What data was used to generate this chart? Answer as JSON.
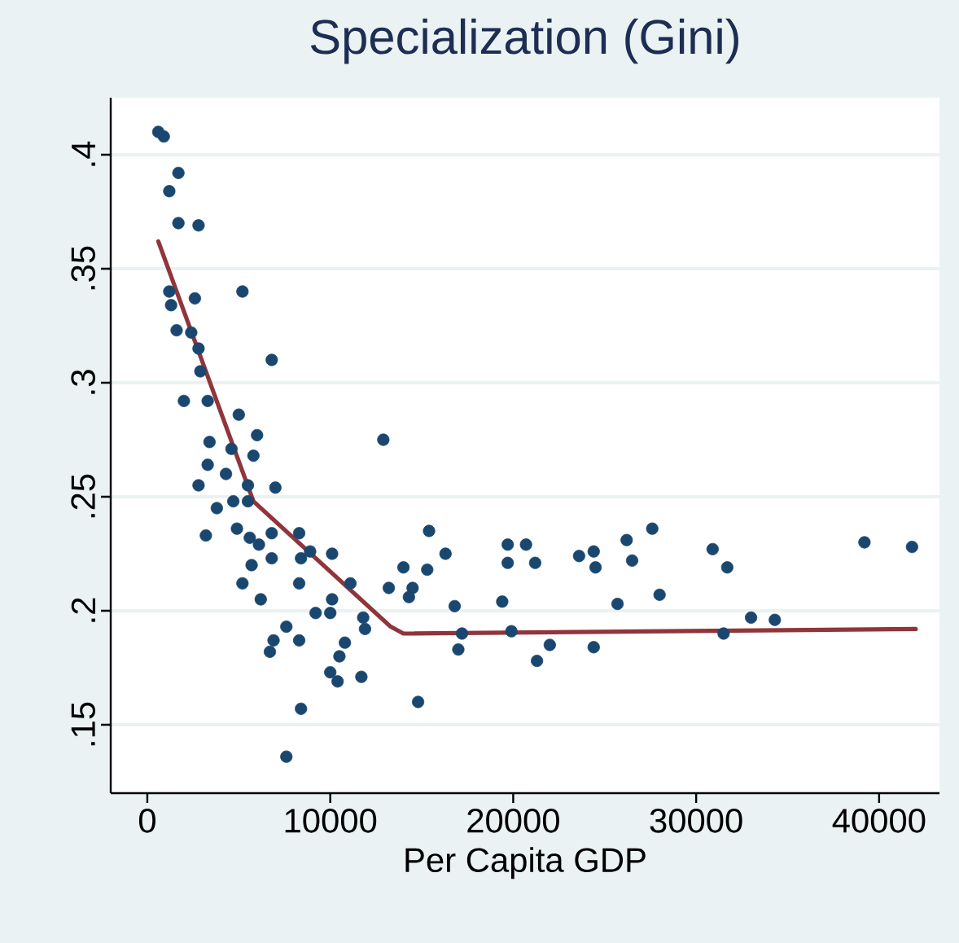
{
  "chart_data": {
    "type": "scatter",
    "title": "Specialization (Gini)",
    "xlabel": "Per Capita GDP",
    "xlim": [
      -2000,
      43300
    ],
    "ylim": [
      0.12,
      0.425
    ],
    "xticks": [
      0,
      10000,
      20000,
      30000,
      40000
    ],
    "yticks": [
      {
        "value": 0.15,
        "label": ".15"
      },
      {
        "value": 0.2,
        "label": ".2"
      },
      {
        "value": 0.25,
        "label": ".25"
      },
      {
        "value": 0.3,
        "label": ".3"
      },
      {
        "value": 0.35,
        "label": ".35"
      },
      {
        "value": 0.4,
        "label": ".4"
      }
    ],
    "grid": "y",
    "series": [
      {
        "marker": "circle",
        "color": "#1a476f",
        "x": [
          600,
          900,
          1700,
          1200,
          1700,
          2800,
          5200,
          1200,
          1300,
          2600,
          1600,
          2400,
          2800,
          2900,
          6800,
          2000,
          3300,
          5000,
          3400,
          4600,
          6000,
          5800,
          3300,
          4300,
          2800,
          5500,
          7000,
          12900,
          3800,
          4700,
          5500,
          3200,
          4900,
          5600,
          6100,
          6800,
          8300,
          6800,
          5700,
          8400,
          8900,
          10100,
          5200,
          6200,
          8300,
          11100,
          10100,
          9200,
          10000,
          11800,
          11900,
          13200,
          14000,
          15300,
          16300,
          15400,
          14500,
          14300,
          16800,
          17200,
          17000,
          19400,
          19700,
          19700,
          7600,
          6900,
          6700,
          8300,
          10800,
          10500,
          10000,
          10400,
          11700,
          14800,
          8400,
          7600,
          20700,
          21200,
          19900,
          22000,
          21300,
          23600,
          24400,
          24500,
          24400,
          25700,
          26200,
          26500,
          27600,
          28000,
          30900,
          31700,
          31500,
          33000,
          34300,
          39200,
          41800
        ],
        "values": [
          0.41,
          0.408,
          0.392,
          0.384,
          0.37,
          0.369,
          0.34,
          0.34,
          0.334,
          0.337,
          0.323,
          0.322,
          0.315,
          0.305,
          0.31,
          0.292,
          0.292,
          0.286,
          0.274,
          0.271,
          0.277,
          0.268,
          0.264,
          0.26,
          0.255,
          0.255,
          0.254,
          0.275,
          0.245,
          0.248,
          0.248,
          0.233,
          0.236,
          0.232,
          0.229,
          0.234,
          0.234,
          0.223,
          0.22,
          0.223,
          0.226,
          0.225,
          0.212,
          0.205,
          0.212,
          0.212,
          0.205,
          0.199,
          0.199,
          0.197,
          0.192,
          0.21,
          0.219,
          0.218,
          0.225,
          0.235,
          0.21,
          0.206,
          0.202,
          0.19,
          0.183,
          0.204,
          0.229,
          0.221,
          0.193,
          0.187,
          0.182,
          0.187,
          0.186,
          0.18,
          0.173,
          0.169,
          0.171,
          0.16,
          0.157,
          0.136,
          0.229,
          0.221,
          0.191,
          0.185,
          0.178,
          0.224,
          0.226,
          0.219,
          0.184,
          0.203,
          0.231,
          0.222,
          0.236,
          0.207,
          0.227,
          0.219,
          0.19,
          0.197,
          0.196,
          0.23,
          0.228
        ]
      },
      {
        "type": "line",
        "marker": "none",
        "line_style": "solid",
        "color": "#90353b",
        "x": [
          600,
          5800,
          13300,
          14000,
          42000
        ],
        "values": [
          0.362,
          0.248,
          0.193,
          0.19,
          0.192
        ]
      }
    ]
  }
}
